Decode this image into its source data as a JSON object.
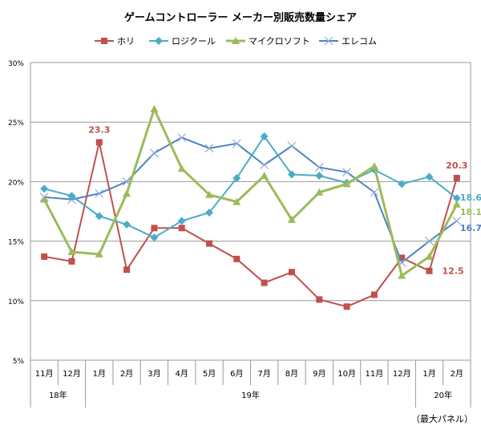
{
  "chart_data": {
    "type": "line",
    "title": "ゲームコントローラー メーカー別販売数量シェア",
    "note": "（最大パネル）",
    "ylim": [
      5,
      30
    ],
    "yticks": [
      "5%",
      "10%",
      "15%",
      "20%",
      "25%",
      "30%"
    ],
    "ytick_values": [
      5,
      10,
      15,
      20,
      25,
      30
    ],
    "grid": true,
    "legend_position": "top",
    "categories": [
      "11月",
      "12月",
      "1月",
      "2月",
      "3月",
      "4月",
      "5月",
      "6月",
      "7月",
      "8月",
      "9月",
      "10月",
      "11月",
      "12月",
      "1月",
      "2月"
    ],
    "year_groups": [
      {
        "label": "18年",
        "count": 2
      },
      {
        "label": "19年",
        "count": 12
      },
      {
        "label": "20年",
        "count": 2
      }
    ],
    "series": [
      {
        "name": "ホリ",
        "color": "#c0504d",
        "marker": "square",
        "values": [
          13.7,
          13.3,
          23.3,
          12.6,
          16.1,
          16.1,
          14.8,
          13.5,
          11.5,
          12.4,
          10.1,
          9.5,
          10.5,
          13.6,
          12.5,
          20.3
        ],
        "labels": [
          {
            "index": 2,
            "text": "23.3"
          },
          {
            "index": 15,
            "text": "20.3"
          },
          {
            "index": 14,
            "text": "12.5"
          }
        ]
      },
      {
        "name": "ロジクール",
        "color": "#4bacc6",
        "marker": "diamond",
        "values": [
          19.4,
          18.8,
          17.1,
          16.4,
          15.3,
          16.7,
          17.4,
          20.3,
          23.8,
          20.6,
          20.5,
          19.9,
          21.0,
          19.8,
          20.4,
          18.6
        ],
        "labels": [
          {
            "index": 15,
            "text": "18.6"
          }
        ]
      },
      {
        "name": "マイクロソフト",
        "color": "#9bbb59",
        "marker": "triangle",
        "values": [
          18.5,
          14.1,
          13.9,
          19.0,
          26.1,
          21.1,
          18.9,
          18.3,
          20.5,
          16.8,
          19.1,
          19.8,
          21.3,
          12.1,
          13.7,
          18.1
        ],
        "labels": [
          {
            "index": 15,
            "text": "18.1"
          }
        ]
      },
      {
        "name": "エレコム",
        "color": "#4f81bd",
        "marker": "x",
        "values": [
          18.7,
          18.5,
          19.0,
          20.0,
          22.4,
          23.7,
          22.8,
          23.2,
          21.4,
          23.0,
          21.2,
          20.8,
          19.1,
          13.2,
          15.0,
          16.7
        ],
        "labels": [
          {
            "index": 15,
            "text": "16.7"
          }
        ]
      }
    ]
  }
}
